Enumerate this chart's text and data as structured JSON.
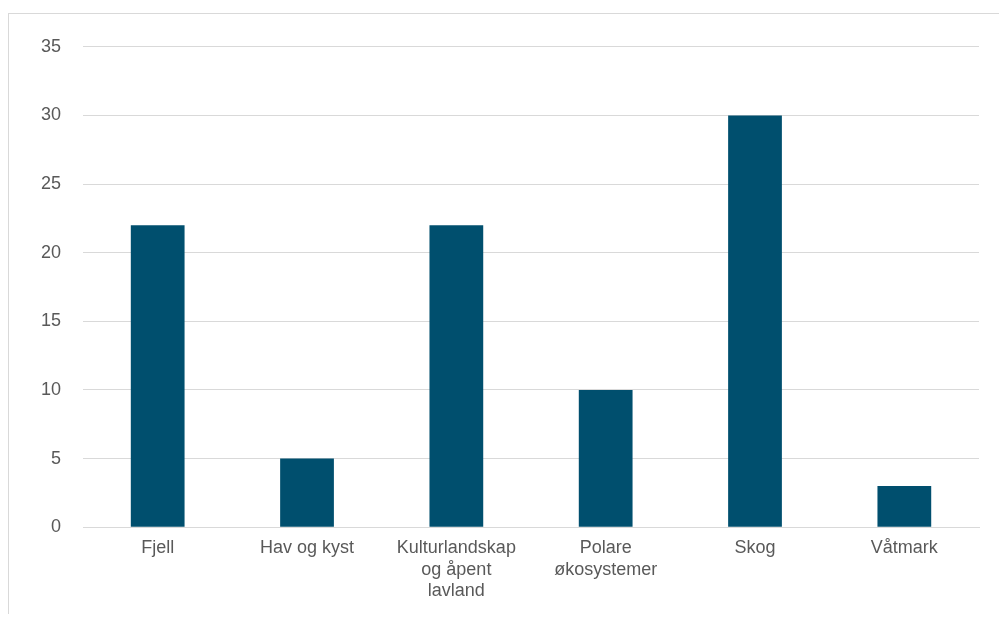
{
  "chart_data": {
    "type": "bar",
    "categories": [
      "Fjell",
      "Hav og kyst",
      "Kulturlandskap og åpent lavland",
      "Polare økosystemer",
      "Skog",
      "Våtmark"
    ],
    "values": [
      22,
      5,
      22,
      10,
      30,
      3
    ],
    "color": "#004f6e",
    "ylim": [
      0,
      35
    ],
    "yticks": [
      0,
      5,
      10,
      15,
      20,
      25,
      30,
      35
    ],
    "grid": "y"
  }
}
